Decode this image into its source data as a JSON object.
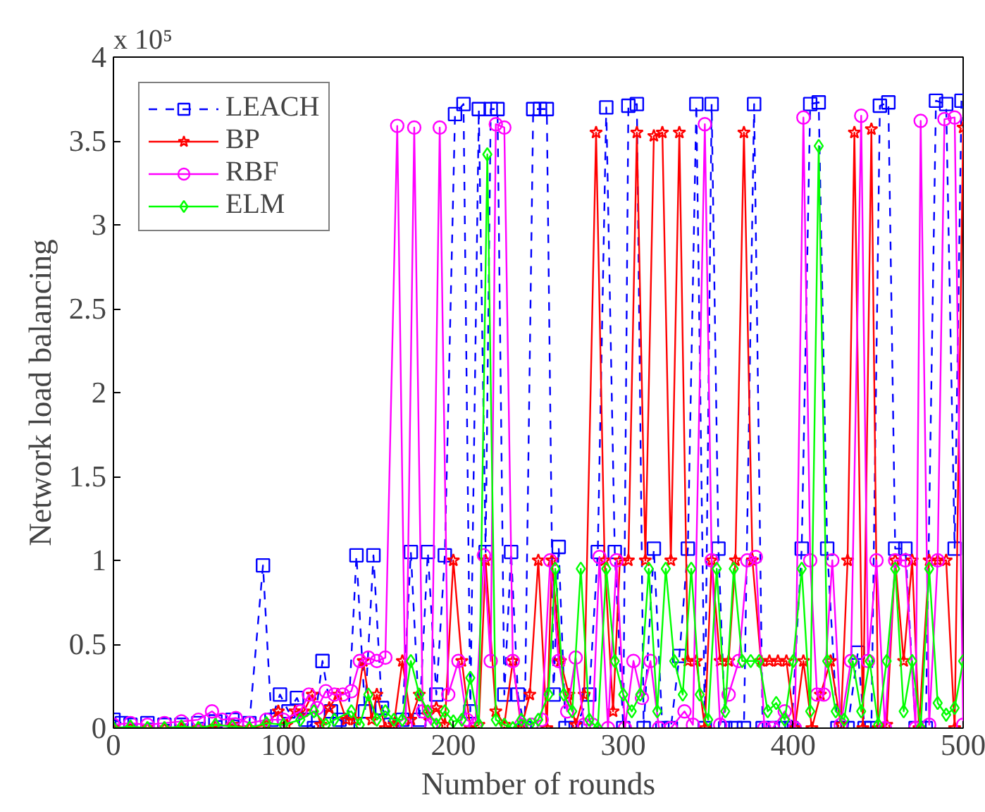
{
  "chart_data": {
    "type": "line",
    "xlabel": "Number of rounds",
    "ylabel": "Network load balancing",
    "annotations": [
      "x 10⁵"
    ],
    "xlim": [
      0,
      500
    ],
    "xticks": [
      0,
      100,
      200,
      300,
      400,
      500
    ],
    "ylim": [
      0,
      4
    ],
    "yticks": [
      0,
      0.5,
      1,
      1.5,
      2,
      2.5,
      3,
      3.5,
      4
    ],
    "grid": false,
    "legend": "top left",
    "series": [
      {
        "name": "LEACH",
        "color": "#0000ff",
        "marker": "square",
        "line_style": "dashed",
        "x": [
          0,
          5,
          10,
          20,
          30,
          40,
          50,
          60,
          70,
          80,
          88,
          93,
          98,
          103,
          108,
          113,
          118,
          123,
          128,
          133,
          138,
          143,
          148,
          153,
          158,
          163,
          170,
          175,
          180,
          185,
          190,
          195,
          201,
          206,
          210,
          215,
          219,
          222,
          226,
          230,
          234,
          238,
          242,
          247,
          251,
          255,
          259,
          262,
          266,
          272,
          280,
          285,
          290,
          295,
          300,
          303,
          308,
          312,
          318,
          323,
          328,
          333,
          338,
          343,
          348,
          352,
          356,
          360,
          366,
          371,
          377,
          382,
          388,
          393,
          399,
          405,
          410,
          415,
          420,
          426,
          432,
          438,
          442,
          446,
          451,
          456,
          460,
          466,
          472,
          478,
          484,
          490,
          495,
          499
        ],
        "values": [
          0.05,
          0.03,
          0.02,
          0.03,
          0.02,
          0.02,
          0.03,
          0.04,
          0.05,
          0.03,
          0.97,
          0.05,
          0.2,
          0.1,
          0.18,
          0.05,
          0.0,
          0.4,
          0.1,
          0.05,
          0.02,
          1.03,
          0.1,
          1.03,
          0.12,
          0.02,
          0.05,
          1.05,
          0.05,
          1.05,
          0.2,
          1.03,
          3.66,
          3.72,
          0.1,
          3.69,
          1.05,
          3.69,
          3.69,
          0.2,
          1.05,
          0.2,
          0.0,
          3.69,
          3.69,
          3.69,
          0.2,
          1.08,
          0.0,
          0.0,
          0.2,
          1.05,
          3.7,
          1.05,
          0.0,
          3.71,
          3.72,
          0.0,
          1.07,
          0.0,
          0.0,
          0.43,
          1.07,
          3.72,
          0.0,
          3.72,
          1.07,
          0.0,
          0.0,
          0.0,
          3.72,
          0.0,
          0.0,
          0.0,
          0.0,
          1.07,
          3.72,
          3.73,
          1.07,
          0.0,
          0.0,
          0.45,
          0.0,
          0.0,
          3.71,
          3.73,
          1.07,
          1.07,
          0.0,
          0.0,
          3.74,
          3.72,
          1.07,
          3.74
        ]
      },
      {
        "name": "BP",
        "color": "#ff0000",
        "marker": "star",
        "line_style": "solid",
        "x": [
          0,
          10,
          20,
          30,
          40,
          50,
          60,
          70,
          80,
          90,
          97,
          102,
          107,
          112,
          117,
          122,
          127,
          132,
          137,
          142,
          147,
          152,
          155,
          160,
          165,
          170,
          175,
          180,
          185,
          190,
          195,
          200,
          205,
          210,
          215,
          219,
          225,
          230,
          235,
          240,
          245,
          250,
          255,
          258,
          263,
          268,
          272,
          277,
          284,
          289,
          294,
          298,
          303,
          308,
          313,
          318,
          323,
          328,
          333,
          338,
          343,
          348,
          352,
          357,
          362,
          366,
          371,
          376,
          381,
          386,
          391,
          396,
          401,
          406,
          411,
          416,
          422,
          428,
          432,
          436,
          441,
          446,
          450,
          455,
          460,
          465,
          470,
          474,
          480,
          485,
          490,
          495,
          500
        ],
        "values": [
          0.0,
          0.0,
          0.0,
          0.0,
          0.0,
          0.0,
          0.01,
          0.02,
          0.0,
          0.02,
          0.1,
          0.02,
          0.1,
          0.1,
          0.2,
          0.02,
          0.12,
          0.2,
          0.05,
          0.05,
          0.4,
          0.05,
          0.2,
          0.0,
          0.02,
          0.4,
          0.05,
          0.2,
          0.08,
          0.12,
          0.02,
          1.0,
          0.4,
          0.0,
          0.02,
          1.0,
          0.1,
          0.02,
          0.4,
          0.0,
          0.2,
          1.0,
          0.0,
          1.0,
          0.4,
          0.2,
          0.02,
          0.2,
          3.55,
          1.0,
          0.1,
          1.0,
          1.0,
          3.55,
          1.0,
          3.53,
          3.55,
          1.0,
          3.55,
          0.4,
          0.4,
          0.0,
          1.0,
          0.4,
          0.4,
          1.0,
          3.55,
          1.0,
          0.4,
          0.4,
          0.4,
          0.4,
          0.0,
          0.4,
          0.0,
          0.2,
          0.4,
          0.02,
          1.0,
          3.55,
          0.0,
          3.57,
          0.0,
          0.02,
          1.0,
          0.4,
          1.0,
          0.0,
          1.0,
          1.0,
          1.0,
          0.0,
          3.58
        ]
      },
      {
        "name": "RBF",
        "color": "#ff00ff",
        "marker": "circle",
        "line_style": "solid",
        "x": [
          0,
          10,
          20,
          30,
          40,
          50,
          58,
          64,
          72,
          80,
          90,
          100,
          110,
          115,
          120,
          125,
          130,
          135,
          140,
          145,
          150,
          155,
          160,
          167,
          172,
          177,
          182,
          187,
          192,
          197,
          203,
          208,
          213,
          218,
          222,
          225,
          230,
          235,
          240,
          246,
          252,
          257,
          262,
          267,
          272,
          277,
          282,
          286,
          291,
          296,
          301,
          306,
          311,
          316,
          321,
          328,
          336,
          341,
          348,
          352,
          357,
          362,
          368,
          373,
          378,
          383,
          388,
          395,
          401,
          406,
          410,
          414,
          418,
          423,
          428,
          434,
          440,
          444,
          449,
          454,
          460,
          466,
          472,
          475,
          480,
          485,
          489,
          495,
          500
        ],
        "values": [
          0.02,
          0.03,
          0.02,
          0.03,
          0.04,
          0.05,
          0.1,
          0.05,
          0.06,
          0.03,
          0.05,
          0.05,
          0.1,
          0.2,
          0.12,
          0.22,
          0.2,
          0.2,
          0.22,
          0.4,
          0.42,
          0.4,
          0.42,
          3.59,
          0.02,
          3.58,
          0.1,
          0.02,
          3.58,
          0.2,
          0.4,
          0.05,
          0.02,
          1.03,
          0.4,
          3.6,
          3.58,
          0.4,
          0.02,
          0.02,
          0.05,
          1.0,
          0.4,
          0.1,
          0.42,
          0.02,
          0.02,
          1.02,
          0.0,
          1.0,
          0.0,
          0.4,
          0.18,
          0.4,
          0.0,
          0.0,
          0.1,
          0.02,
          3.6,
          1.0,
          0.02,
          0.2,
          0.4,
          1.0,
          1.02,
          0.0,
          0.0,
          0.1,
          0.0,
          3.64,
          1.0,
          0.2,
          0.2,
          1.0,
          0.02,
          0.4,
          3.65,
          0.4,
          1.0,
          0.0,
          1.0,
          1.0,
          0.0,
          3.62,
          0.02,
          1.0,
          3.63,
          3.64,
          0.02
        ]
      },
      {
        "name": "ELM",
        "color": "#00ff00",
        "marker": "diamond",
        "line_style": "solid",
        "x": [
          0,
          10,
          20,
          30,
          40,
          50,
          60,
          70,
          80,
          90,
          100,
          110,
          118,
          125,
          130,
          140,
          145,
          150,
          155,
          160,
          165,
          170,
          175,
          180,
          185,
          190,
          195,
          200,
          205,
          210,
          215,
          220,
          225,
          230,
          235,
          240,
          245,
          250,
          256,
          260,
          265,
          270,
          275,
          280,
          285,
          290,
          295,
          300,
          305,
          310,
          315,
          320,
          325,
          330,
          335,
          340,
          345,
          350,
          355,
          360,
          365,
          370,
          375,
          380,
          385,
          390,
          395,
          400,
          405,
          410,
          415,
          420,
          425,
          430,
          435,
          440,
          445,
          450,
          455,
          460,
          465,
          470,
          475,
          480,
          485,
          490,
          495,
          500
        ],
        "values": [
          0.0,
          0.01,
          0.0,
          0.0,
          0.01,
          0.0,
          0.02,
          0.01,
          0.0,
          0.03,
          0.02,
          0.05,
          0.1,
          0.02,
          0.05,
          0.1,
          0.02,
          0.2,
          0.05,
          0.1,
          0.05,
          0.05,
          0.4,
          0.2,
          0.1,
          0.02,
          0.1,
          0.04,
          0.05,
          0.3,
          0.02,
          3.42,
          0.05,
          0.02,
          0.0,
          0.05,
          0.02,
          0.05,
          0.2,
          0.95,
          0.2,
          0.1,
          0.95,
          0.05,
          0.0,
          0.95,
          0.4,
          0.2,
          0.1,
          0.2,
          0.95,
          0.1,
          0.95,
          0.4,
          0.2,
          0.95,
          0.2,
          0.05,
          0.95,
          0.1,
          0.95,
          0.4,
          0.4,
          0.4,
          0.1,
          0.15,
          0.05,
          0.4,
          0.95,
          0.1,
          3.47,
          0.4,
          0.1,
          0.05,
          0.4,
          0.1,
          0.4,
          0.02,
          0.4,
          0.95,
          0.1,
          0.4,
          0.0,
          0.95,
          0.15,
          0.08,
          0.12,
          0.4
        ]
      }
    ]
  }
}
